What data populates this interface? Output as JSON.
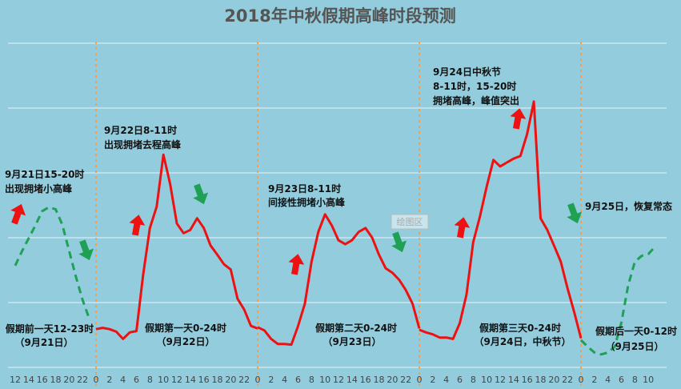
{
  "chart_data": {
    "type": "line",
    "title": "2018年中秋假期高峰时段预测",
    "xlabel": "",
    "ylabel": "",
    "y_axis_labels_shown": false,
    "grid": true,
    "ylim": [
      0,
      5
    ],
    "days": [
      "9月21日",
      "9月22日",
      "9月23日",
      "9月24日",
      "9月25日"
    ],
    "tick_labels": [
      [
        "12",
        "14",
        "16",
        "18",
        "20",
        "22"
      ],
      [
        "0",
        "2",
        "4",
        "6",
        "8",
        "10",
        "12",
        "14",
        "16",
        "18",
        "20",
        "22"
      ],
      [
        "0",
        "2",
        "4",
        "6",
        "8",
        "10",
        "12",
        "14",
        "16",
        "18",
        "20",
        "22"
      ],
      [
        "0",
        "2",
        "4",
        "6",
        "8",
        "10",
        "12",
        "14",
        "16",
        "18",
        "20",
        "22"
      ],
      [
        "0",
        "2",
        "4",
        "6",
        "8",
        "10"
      ]
    ],
    "series": [
      {
        "day": 0,
        "style": "dashed",
        "color": "#1FA055",
        "hours": [
          12,
          13,
          14,
          15,
          16,
          17,
          18,
          19,
          20,
          21,
          22,
          23
        ],
        "values": [
          1.57,
          1.79,
          1.99,
          2.19,
          2.41,
          2.47,
          2.44,
          2.2,
          1.8,
          1.4,
          1.04,
          0.75
        ]
      },
      {
        "day": 1,
        "style": "solid",
        "color": "#EE1111",
        "hours": [
          0,
          1,
          2,
          3,
          4,
          5,
          6,
          7,
          8,
          9,
          10,
          11,
          12,
          13,
          14,
          15,
          16,
          17,
          18,
          19,
          20,
          21,
          22,
          23,
          24
        ],
        "values": [
          0.59,
          0.61,
          0.59,
          0.55,
          0.44,
          0.54,
          0.56,
          1.43,
          2.15,
          2.48,
          3.28,
          2.83,
          2.22,
          2.07,
          2.12,
          2.3,
          2.15,
          1.88,
          1.74,
          1.59,
          1.51,
          1.06,
          0.89,
          0.64,
          0.6
        ]
      },
      {
        "day": 2,
        "style": "solid",
        "color": "#EE1111",
        "hours": [
          0,
          1,
          2,
          3,
          4,
          5,
          6,
          7,
          8,
          9,
          10,
          11,
          12,
          13,
          14,
          15,
          16,
          17,
          18,
          19,
          20,
          21,
          22,
          23,
          24
        ],
        "values": [
          0.62,
          0.57,
          0.44,
          0.36,
          0.36,
          0.35,
          0.64,
          0.98,
          1.63,
          2.09,
          2.36,
          2.19,
          1.96,
          1.9,
          1.96,
          2.09,
          2.15,
          2.0,
          1.74,
          1.53,
          1.46,
          1.35,
          1.19,
          0.98,
          0.6
        ]
      },
      {
        "day": 3,
        "style": "solid",
        "color": "#EE1111",
        "hours": [
          0,
          1,
          2,
          3,
          4,
          5,
          6,
          7,
          8,
          9,
          10,
          11,
          12,
          13,
          14,
          15,
          16,
          17,
          18,
          19,
          20,
          21,
          22,
          23,
          24
        ],
        "values": [
          0.58,
          0.54,
          0.51,
          0.46,
          0.46,
          0.44,
          0.68,
          1.12,
          1.93,
          2.33,
          2.79,
          3.2,
          3.1,
          3.16,
          3.22,
          3.26,
          3.6,
          4.1,
          2.3,
          2.12,
          1.88,
          1.63,
          1.22,
          0.85,
          0.45
        ]
      },
      {
        "day": 4,
        "style": "dashed",
        "color": "#1FA055",
        "hours": [
          0,
          1,
          2,
          3,
          4,
          5,
          6,
          7,
          8,
          9,
          10,
          11
        ],
        "values": [
          0.42,
          0.32,
          0.23,
          0.2,
          0.23,
          0.32,
          0.69,
          1.26,
          1.63,
          1.72,
          1.75,
          1.86
        ]
      }
    ],
    "annotations": {
      "peak_0921": [
        "9月21日15-20时",
        "出现拥堵小高峰"
      ],
      "peak_0922": [
        "9月22日8-11时",
        "出现拥堵去程高峰"
      ],
      "peak_0923": [
        "9月23日8-11时",
        "间接性拥堵小高峰"
      ],
      "peak_0924": [
        "9月24日中秋节",
        "8-11时，15-20时",
        "拥堵高峰，峰值突出"
      ],
      "normal_0925": [
        "9月25日，恢复常态"
      ],
      "period_0921": [
        "假期前一天12-23时",
        "（9月21日）"
      ],
      "period_0922": [
        "假期第一天0-24时",
        "（9月22日）"
      ],
      "period_0923": [
        "假期第二天0-24时",
        "（9月23日）"
      ],
      "period_0924": [
        "假期第三天0-24时",
        "（9月24日，中秋节）"
      ],
      "period_0925": [
        "假期后一天0-12时",
        "（9月25日）"
      ]
    },
    "tooltip": "绘图区",
    "colors": {
      "background": "#93CDDD",
      "rise_arrow": "#EE1111",
      "fall_arrow": "#1FA055",
      "day_divider": "#F0A050",
      "grid": "#E8F4F8"
    }
  }
}
